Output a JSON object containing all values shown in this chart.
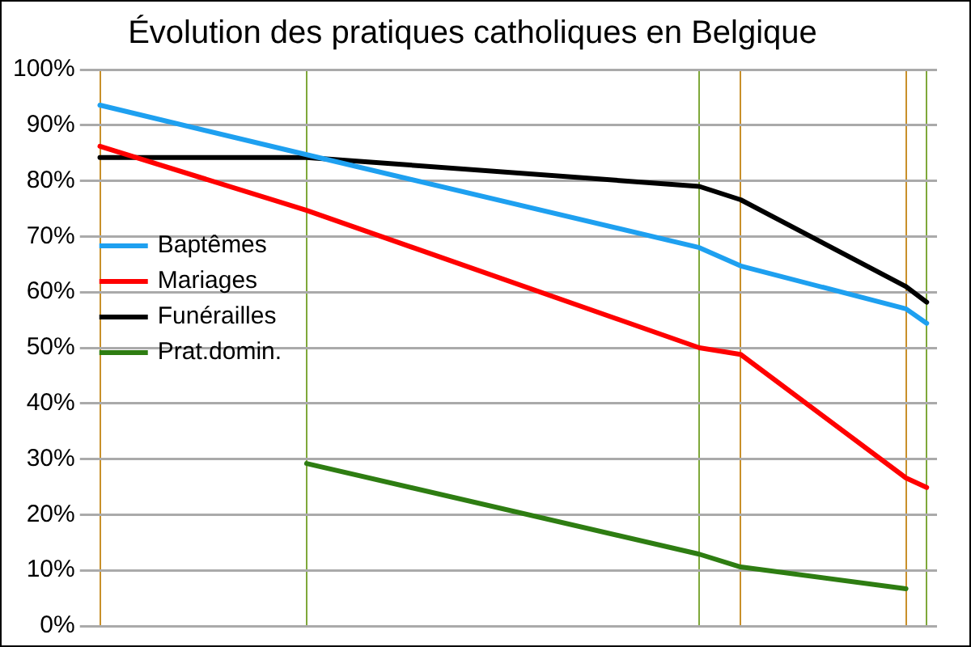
{
  "chart_data": {
    "type": "line",
    "title": "Évolution des pratiques catholiques en Belgique",
    "categories": [
      null,
      null,
      null,
      null,
      null,
      null,
      null,
      null,
      null,
      null,
      null,
      null,
      null,
      null,
      null,
      null,
      null,
      null,
      null,
      null,
      null,
      null,
      null,
      null,
      null,
      null,
      null,
      null,
      null,
      null,
      null,
      null,
      null,
      null,
      null,
      null,
      null,
      null,
      null,
      null,
      null
    ],
    "series": [
      {
        "name": "Baptêmes",
        "color": "#1ea0f0",
        "values": [
          93.6,
          null,
          null,
          null,
          null,
          null,
          null,
          null,
          null,
          null,
          84.7,
          null,
          null,
          null,
          null,
          null,
          null,
          null,
          null,
          null,
          null,
          null,
          null,
          null,
          null,
          null,
          null,
          null,
          null,
          68,
          null,
          64.7,
          null,
          null,
          null,
          null,
          null,
          null,
          null,
          57,
          54.4
        ]
      },
      {
        "name": "Mariages",
        "color": "#ff0000",
        "values": [
          86.2,
          null,
          null,
          null,
          null,
          null,
          null,
          null,
          null,
          null,
          74.7,
          null,
          null,
          null,
          null,
          null,
          null,
          null,
          null,
          null,
          null,
          null,
          null,
          null,
          null,
          null,
          null,
          null,
          null,
          50,
          null,
          48.8,
          null,
          null,
          null,
          null,
          null,
          null,
          null,
          26.6,
          24.9
        ]
      },
      {
        "name": "Funérailles",
        "color": "#000000",
        "values": [
          84.2,
          null,
          null,
          null,
          null,
          null,
          null,
          null,
          null,
          null,
          84.2,
          null,
          null,
          null,
          null,
          null,
          null,
          null,
          null,
          null,
          null,
          null,
          null,
          null,
          null,
          null,
          null,
          null,
          null,
          79,
          null,
          76.6,
          null,
          null,
          null,
          null,
          null,
          null,
          null,
          61,
          58.2
        ]
      },
      {
        "name": "Prat.domin.",
        "color": "#2e7d12",
        "values": [
          null,
          null,
          null,
          null,
          null,
          null,
          null,
          null,
          null,
          null,
          29.2,
          null,
          null,
          null,
          null,
          null,
          null,
          null,
          null,
          null,
          null,
          null,
          null,
          null,
          null,
          null,
          null,
          null,
          null,
          12.9,
          null,
          10.6,
          null,
          null,
          null,
          null,
          null,
          null,
          null,
          6.7,
          null
        ]
      }
    ],
    "ylim": [
      0,
      100
    ],
    "yticks": [
      {
        "value": 0,
        "label": "0%"
      },
      {
        "value": 10,
        "label": "10%"
      },
      {
        "value": 20,
        "label": "20%"
      },
      {
        "value": 30,
        "label": "30%"
      },
      {
        "value": 40,
        "label": "40%"
      },
      {
        "value": 50,
        "label": "50%"
      },
      {
        "value": 60,
        "label": "60%"
      },
      {
        "value": 70,
        "label": "70%"
      },
      {
        "value": 80,
        "label": "80%"
      },
      {
        "value": 90,
        "label": "90%"
      },
      {
        "value": 100,
        "label": "100%"
      }
    ],
    "tick_labels": "y",
    "grid": true,
    "legend": "left",
    "marker": "none",
    "line_style": "solid"
  }
}
